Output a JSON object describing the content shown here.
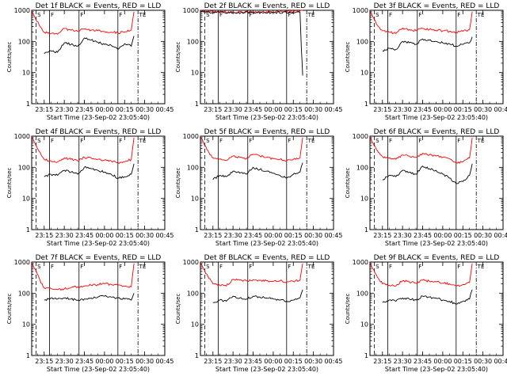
{
  "chart_data": {
    "type": "line",
    "layout": "3x3 grid of panels",
    "ylabel": "Counts/sec",
    "xlabel": "Start Time (23-Sep-02 23:05:40)",
    "yscale": "log",
    "ylim": [
      1,
      1000
    ],
    "y_tick_labels": [
      "1",
      "10",
      "100",
      "1000"
    ],
    "xlim": [
      "23:05:40",
      "00:45"
    ],
    "x_tick_labels": [
      "23:15",
      "23:30",
      "23:45",
      "00:00",
      "00:15",
      "00:30",
      "00:45"
    ],
    "series": [
      {
        "name": "Events",
        "color": "#000000"
      },
      {
        "name": "LLD",
        "color": "#ff0000"
      }
    ],
    "panels": [
      {
        "title": "Det 1f BLACK = Events, RED = LLD",
        "markers": [
          {
            "label": "S",
            "x": "23:09",
            "style": "dashed"
          },
          {
            "label": "F",
            "x": "23:19",
            "style": "solid"
          },
          {
            "label": "F",
            "x": "23:41",
            "style": "solid"
          },
          {
            "label": "F",
            "x": "00:10",
            "style": "solid"
          },
          {
            "label": "TE",
            "x": "00:25",
            "style": "dashdot"
          }
        ],
        "x_times": [
          "23:06",
          "23:08",
          "23:12",
          "23:15",
          "23:20",
          "23:25",
          "23:30",
          "23:35",
          "23:40",
          "23:45",
          "23:50",
          "23:55",
          "00:00",
          "00:05",
          "00:10",
          "00:15",
          "00:20",
          "00:22"
        ],
        "black": [
          null,
          null,
          null,
          40,
          50,
          45,
          90,
          80,
          70,
          130,
          110,
          95,
          80,
          75,
          55,
          85,
          70,
          150
        ],
        "red": [
          900,
          600,
          300,
          200,
          180,
          170,
          260,
          230,
          210,
          250,
          230,
          220,
          210,
          200,
          190,
          200,
          230,
          900
        ]
      },
      {
        "title": "Det 2f BLACK = Events, RED = LLD",
        "markers": [
          {
            "label": "S",
            "x": "23:09",
            "style": "dashed"
          },
          {
            "label": "F",
            "x": "23:19",
            "style": "solid"
          },
          {
            "label": "F",
            "x": "23:41",
            "style": "solid"
          },
          {
            "label": "F",
            "x": "00:10",
            "style": "solid"
          },
          {
            "label": "TE",
            "x": "00:25",
            "style": "dashdot"
          }
        ],
        "x_times": [
          "23:06",
          "23:08",
          "23:10",
          "23:15",
          "23:30",
          "23:45",
          "00:00",
          "00:15",
          "00:20",
          "00:21",
          "00:22"
        ],
        "black": [
          900,
          880,
          870,
          860,
          850,
          840,
          850,
          860,
          870,
          60,
          8
        ],
        "red": [
          1000,
          950,
          920,
          900,
          880,
          880,
          890,
          900,
          950,
          1000,
          1000
        ]
      },
      {
        "title": "Det 3f BLACK = Events, RED = LLD",
        "markers": [
          {
            "label": "S",
            "x": "23:09",
            "style": "dashed"
          },
          {
            "label": "F",
            "x": "23:19",
            "style": "solid"
          },
          {
            "label": "F",
            "x": "23:41",
            "style": "solid"
          },
          {
            "label": "F",
            "x": "00:10",
            "style": "solid"
          },
          {
            "label": "TE",
            "x": "00:25",
            "style": "dashdot"
          }
        ],
        "x_times": [
          "23:06",
          "23:08",
          "23:12",
          "23:15",
          "23:20",
          "23:25",
          "23:30",
          "23:35",
          "23:40",
          "23:45",
          "23:50",
          "23:55",
          "00:00",
          "00:05",
          "00:10",
          "00:15",
          "00:20",
          "00:22"
        ],
        "black": [
          null,
          null,
          null,
          50,
          60,
          55,
          100,
          90,
          80,
          120,
          110,
          100,
          90,
          85,
          70,
          80,
          90,
          140
        ],
        "red": [
          900,
          600,
          300,
          220,
          200,
          180,
          270,
          240,
          220,
          260,
          240,
          230,
          220,
          210,
          200,
          210,
          240,
          900
        ]
      },
      {
        "title": "Det 4f BLACK = Events, RED = LLD",
        "markers": [
          {
            "label": "S",
            "x": "23:09",
            "style": "dashed"
          },
          {
            "label": "F",
            "x": "23:19",
            "style": "solid"
          },
          {
            "label": "F",
            "x": "23:41",
            "style": "solid"
          },
          {
            "label": "F",
            "x": "00:10",
            "style": "solid"
          },
          {
            "label": "TE",
            "x": "00:25",
            "style": "dashdot"
          }
        ],
        "x_times": [
          "23:06",
          "23:08",
          "23:12",
          "23:15",
          "23:20",
          "23:25",
          "23:30",
          "23:35",
          "23:40",
          "23:45",
          "23:50",
          "23:55",
          "00:00",
          "00:05",
          "00:10",
          "00:15",
          "00:20",
          "00:22"
        ],
        "black": [
          null,
          null,
          null,
          50,
          60,
          55,
          80,
          70,
          60,
          100,
          90,
          80,
          70,
          60,
          45,
          50,
          60,
          130
        ],
        "red": [
          900,
          600,
          300,
          180,
          160,
          150,
          200,
          180,
          160,
          210,
          200,
          180,
          170,
          160,
          140,
          150,
          180,
          900
        ]
      },
      {
        "title": "Det 5f BLACK = Events, RED = LLD",
        "markers": [
          {
            "label": "S",
            "x": "23:09",
            "style": "dashed"
          },
          {
            "label": "F",
            "x": "23:19",
            "style": "solid"
          },
          {
            "label": "F",
            "x": "23:41",
            "style": "solid"
          },
          {
            "label": "F",
            "x": "00:10",
            "style": "solid"
          },
          {
            "label": "TE",
            "x": "00:25",
            "style": "dashdot"
          }
        ],
        "x_times": [
          "23:06",
          "23:08",
          "23:12",
          "23:15",
          "23:20",
          "23:25",
          "23:30",
          "23:35",
          "23:40",
          "23:45",
          "23:50",
          "23:55",
          "00:00",
          "00:05",
          "00:10",
          "00:15",
          "00:20",
          "00:22"
        ],
        "black": [
          null,
          null,
          null,
          40,
          55,
          50,
          75,
          65,
          60,
          100,
          85,
          75,
          65,
          55,
          45,
          60,
          70,
          140
        ],
        "red": [
          900,
          600,
          300,
          200,
          180,
          170,
          230,
          210,
          190,
          260,
          230,
          210,
          190,
          180,
          160,
          180,
          200,
          900
        ]
      },
      {
        "title": "Det 6f BLACK = Events, RED = LLD",
        "markers": [
          {
            "label": "S",
            "x": "23:09",
            "style": "dashed"
          },
          {
            "label": "F",
            "x": "23:19",
            "style": "solid"
          },
          {
            "label": "F",
            "x": "23:41",
            "style": "solid"
          },
          {
            "label": "F",
            "x": "00:10",
            "style": "solid"
          },
          {
            "label": "TE",
            "x": "00:25",
            "style": "dashdot"
          }
        ],
        "x_times": [
          "23:06",
          "23:08",
          "23:12",
          "23:15",
          "23:20",
          "23:25",
          "23:30",
          "23:35",
          "23:40",
          "23:45",
          "23:50",
          "23:55",
          "00:00",
          "00:05",
          "00:10",
          "00:15",
          "00:20",
          "00:22"
        ],
        "black": [
          null,
          null,
          null,
          40,
          55,
          50,
          80,
          70,
          60,
          110,
          90,
          80,
          60,
          45,
          30,
          35,
          55,
          130
        ],
        "red": [
          900,
          600,
          300,
          220,
          200,
          180,
          250,
          230,
          210,
          280,
          250,
          230,
          210,
          190,
          140,
          150,
          200,
          900
        ]
      },
      {
        "title": "Det 7f BLACK = Events, RED = LLD",
        "markers": [
          {
            "label": "S",
            "x": "23:09",
            "style": "dashed"
          },
          {
            "label": "F",
            "x": "23:19",
            "style": "solid"
          },
          {
            "label": "F",
            "x": "23:41",
            "style": "solid"
          },
          {
            "label": "F",
            "x": "00:10",
            "style": "solid"
          },
          {
            "label": "TE",
            "x": "00:25",
            "style": "dashdot"
          }
        ],
        "x_times": [
          "23:06",
          "23:08",
          "23:12",
          "23:15",
          "23:20",
          "23:25",
          "23:30",
          "23:35",
          "23:40",
          "23:45",
          "23:50",
          "23:55",
          "00:00",
          "00:05",
          "00:10",
          "00:15",
          "00:20",
          "00:22"
        ],
        "black": [
          null,
          null,
          null,
          60,
          70,
          65,
          70,
          65,
          60,
          65,
          70,
          75,
          80,
          75,
          70,
          65,
          60,
          100
        ],
        "red": [
          900,
          600,
          250,
          150,
          140,
          130,
          140,
          150,
          160,
          170,
          180,
          190,
          200,
          190,
          180,
          170,
          160,
          900
        ]
      },
      {
        "title": "Det 8f BLACK = Events, RED = LLD",
        "markers": [
          {
            "label": "S",
            "x": "23:09",
            "style": "dashed"
          },
          {
            "label": "F",
            "x": "23:19",
            "style": "solid"
          },
          {
            "label": "F",
            "x": "23:41",
            "style": "solid"
          },
          {
            "label": "F",
            "x": "00:10",
            "style": "solid"
          },
          {
            "label": "TE",
            "x": "00:25",
            "style": "dashdot"
          }
        ],
        "x_times": [
          "23:06",
          "23:08",
          "23:12",
          "23:15",
          "23:20",
          "23:25",
          "23:30",
          "23:35",
          "23:40",
          "23:45",
          "23:50",
          "23:55",
          "00:00",
          "00:05",
          "00:10",
          "00:15",
          "00:20",
          "00:22"
        ],
        "black": [
          null,
          null,
          null,
          50,
          60,
          55,
          80,
          70,
          65,
          80,
          75,
          70,
          65,
          60,
          55,
          60,
          70,
          130
        ],
        "red": [
          900,
          600,
          300,
          200,
          180,
          170,
          280,
          260,
          250,
          270,
          260,
          250,
          240,
          250,
          230,
          240,
          260,
          900
        ]
      },
      {
        "title": "Det 9f BLACK = Events, RED = LLD",
        "markers": [
          {
            "label": "S",
            "x": "23:09",
            "style": "dashed"
          },
          {
            "label": "F",
            "x": "23:19",
            "style": "solid"
          },
          {
            "label": "F",
            "x": "23:41",
            "style": "solid"
          },
          {
            "label": "F",
            "x": "00:10",
            "style": "solid"
          },
          {
            "label": "TE",
            "x": "00:25",
            "style": "dashdot"
          }
        ],
        "x_times": [
          "23:06",
          "23:08",
          "23:12",
          "23:15",
          "23:20",
          "23:25",
          "23:30",
          "23:35",
          "23:40",
          "23:45",
          "23:50",
          "23:55",
          "00:00",
          "00:05",
          "00:10",
          "00:15",
          "00:20",
          "00:22"
        ],
        "black": [
          null,
          null,
          null,
          50,
          60,
          55,
          70,
          65,
          60,
          80,
          75,
          70,
          60,
          55,
          45,
          55,
          65,
          130
        ],
        "red": [
          900,
          600,
          300,
          200,
          180,
          170,
          250,
          230,
          210,
          260,
          240,
          230,
          210,
          200,
          170,
          190,
          220,
          900
        ]
      }
    ]
  }
}
